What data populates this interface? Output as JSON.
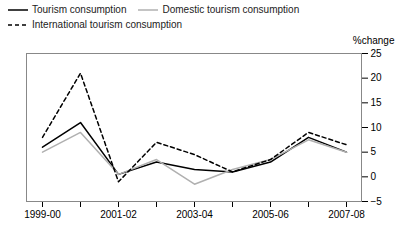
{
  "chart_data": {
    "type": "line",
    "categories": [
      "1999-00",
      null,
      "2001-02",
      null,
      "2003-04",
      null,
      "2005-06",
      null,
      "2007-08"
    ],
    "series": [
      {
        "name": "Tourism consumption",
        "color": "black",
        "line_style": "solid",
        "values": [
          6,
          11,
          0.5,
          3,
          1.5,
          1,
          3,
          8,
          5
        ]
      },
      {
        "name": "Domestic tourism consumption",
        "color": "#b0b0b0",
        "line_style": "solid",
        "values": [
          5,
          9,
          0.5,
          3.5,
          -1.5,
          1.5,
          3.5,
          7.5,
          5
        ]
      },
      {
        "name": "International tourism consumption",
        "color": "black",
        "line_style": "dashed",
        "values": [
          8,
          21,
          -1,
          7,
          4.5,
          1,
          3.5,
          9,
          6.5
        ]
      }
    ],
    "ylabel": "%change",
    "ylim": [
      -5,
      25
    ],
    "yticks": [
      -5,
      0,
      5,
      10,
      15,
      20,
      25
    ],
    "grid": false,
    "legend": "top"
  }
}
